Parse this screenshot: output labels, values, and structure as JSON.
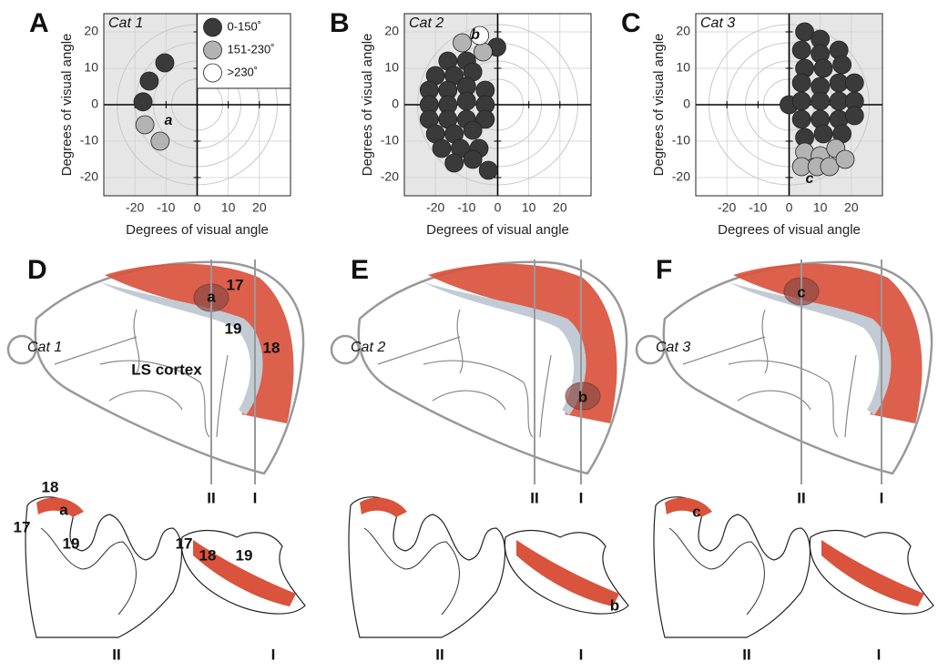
{
  "chart_data": [
    {
      "type": "scatter",
      "label": "A",
      "title": "Cat 1",
      "xlabel": "Degrees of visual angle",
      "ylabel": "Degrees of visual angle",
      "xlim": [
        -30,
        30
      ],
      "ylim": [
        -25,
        25
      ],
      "xticks": [
        -20,
        -10,
        0,
        10,
        20
      ],
      "yticks": [
        -20,
        -10,
        0,
        10,
        20
      ],
      "grid": true,
      "shaded_half": "left",
      "legend": "upper right",
      "annotation": "a",
      "series": [
        {
          "name": "0-150˚",
          "color": "#3a3a3a",
          "x": [
            -10.4,
            -15.4,
            -17.4
          ],
          "y": [
            11.5,
            6.5,
            0.8
          ]
        },
        {
          "name": "151-230˚",
          "color": "#b3b3b3",
          "x": [
            -16.8,
            -11.9
          ],
          "y": [
            -5.5,
            -10
          ]
        },
        {
          "name": ">230˚",
          "color": "#ffffff",
          "x": [],
          "y": []
        }
      ]
    },
    {
      "type": "scatter",
      "label": "B",
      "title": "Cat 2",
      "xlabel": "Degrees of visual angle",
      "ylabel": "Degrees of visual angle",
      "xlim": [
        -30,
        30
      ],
      "ylim": [
        -25,
        25
      ],
      "xticks": [
        -20,
        -10,
        0,
        10,
        20
      ],
      "yticks": [
        -20,
        -10,
        0,
        10,
        20
      ],
      "grid": true,
      "shaded_half": "left",
      "annotation": "b",
      "series": [
        {
          "color": "#3a3a3a",
          "x": [
            -0.3,
            -16,
            -10,
            -20,
            -14,
            -8,
            -22,
            -16,
            -10,
            -4,
            -22,
            -16,
            -10,
            -4,
            -22,
            -16,
            -10,
            -4,
            -20,
            -14,
            -8,
            -18,
            -12,
            -6,
            -14,
            -8,
            -3
          ],
          "y": [
            15.8,
            12,
            12,
            8,
            8,
            9,
            4,
            4,
            5,
            4,
            0,
            0,
            1,
            0,
            -4,
            -4,
            -4,
            -4,
            -8,
            -8,
            -7,
            -12,
            -12,
            -12,
            -16,
            -15,
            -18
          ]
        },
        {
          "color": "#b3b3b3",
          "x": [
            -11.4,
            -4.7
          ],
          "y": [
            17,
            14.5
          ]
        },
        {
          "color": "#ffffff",
          "x": [
            -5.8
          ],
          "y": [
            19
          ]
        }
      ]
    },
    {
      "type": "scatter",
      "label": "C",
      "title": "Cat 3",
      "xlabel": "Degrees of visual angle",
      "ylabel": "Degrees of visual angle",
      "xlim": [
        -30,
        30
      ],
      "ylim": [
        -25,
        25
      ],
      "xticks": [
        -20,
        -10,
        0,
        10,
        20
      ],
      "yticks": [
        -20,
        -10,
        0,
        10,
        20
      ],
      "grid": true,
      "shaded_half": "right",
      "annotation": "c",
      "series": [
        {
          "color": "#3a3a3a",
          "x": [
            0,
            5,
            10,
            4,
            10,
            16,
            5,
            11,
            17,
            4,
            10,
            16,
            21,
            4,
            10,
            16,
            21,
            4,
            10,
            16,
            21,
            5,
            11,
            17
          ],
          "y": [
            0,
            20,
            18,
            15,
            14,
            15,
            10,
            10,
            11,
            6,
            5,
            6,
            6,
            1,
            1,
            1,
            1,
            -4,
            -4,
            -4,
            -3,
            -9,
            -8,
            -8
          ]
        },
        {
          "color": "#b3b3b3",
          "x": [
            5,
            10,
            15,
            4,
            9,
            13,
            18
          ],
          "y": [
            -13,
            -14,
            -12,
            -17,
            -17,
            -17,
            -15
          ]
        }
      ]
    }
  ],
  "drawings": [
    {
      "label": "D",
      "title": "Cat 1",
      "brain_labels": [
        "a",
        "17",
        "19",
        "18",
        "LS cortex"
      ],
      "lines": [
        "II",
        "I"
      ],
      "section_labels": [
        "18",
        "a",
        "17",
        "19",
        "17",
        "18",
        "19"
      ],
      "section_lines": [
        "II",
        "I"
      ]
    },
    {
      "label": "E",
      "title": "Cat 2",
      "brain_labels": [
        "b"
      ],
      "lines": [
        "II",
        "I"
      ],
      "section_labels": [
        "b"
      ],
      "section_lines": [
        "II",
        "I"
      ]
    },
    {
      "label": "F",
      "title": "Cat 3",
      "brain_labels": [
        "c"
      ],
      "lines": [
        "II",
        "I"
      ],
      "section_labels": [
        "c"
      ],
      "section_lines": [
        "II",
        "I"
      ]
    }
  ]
}
